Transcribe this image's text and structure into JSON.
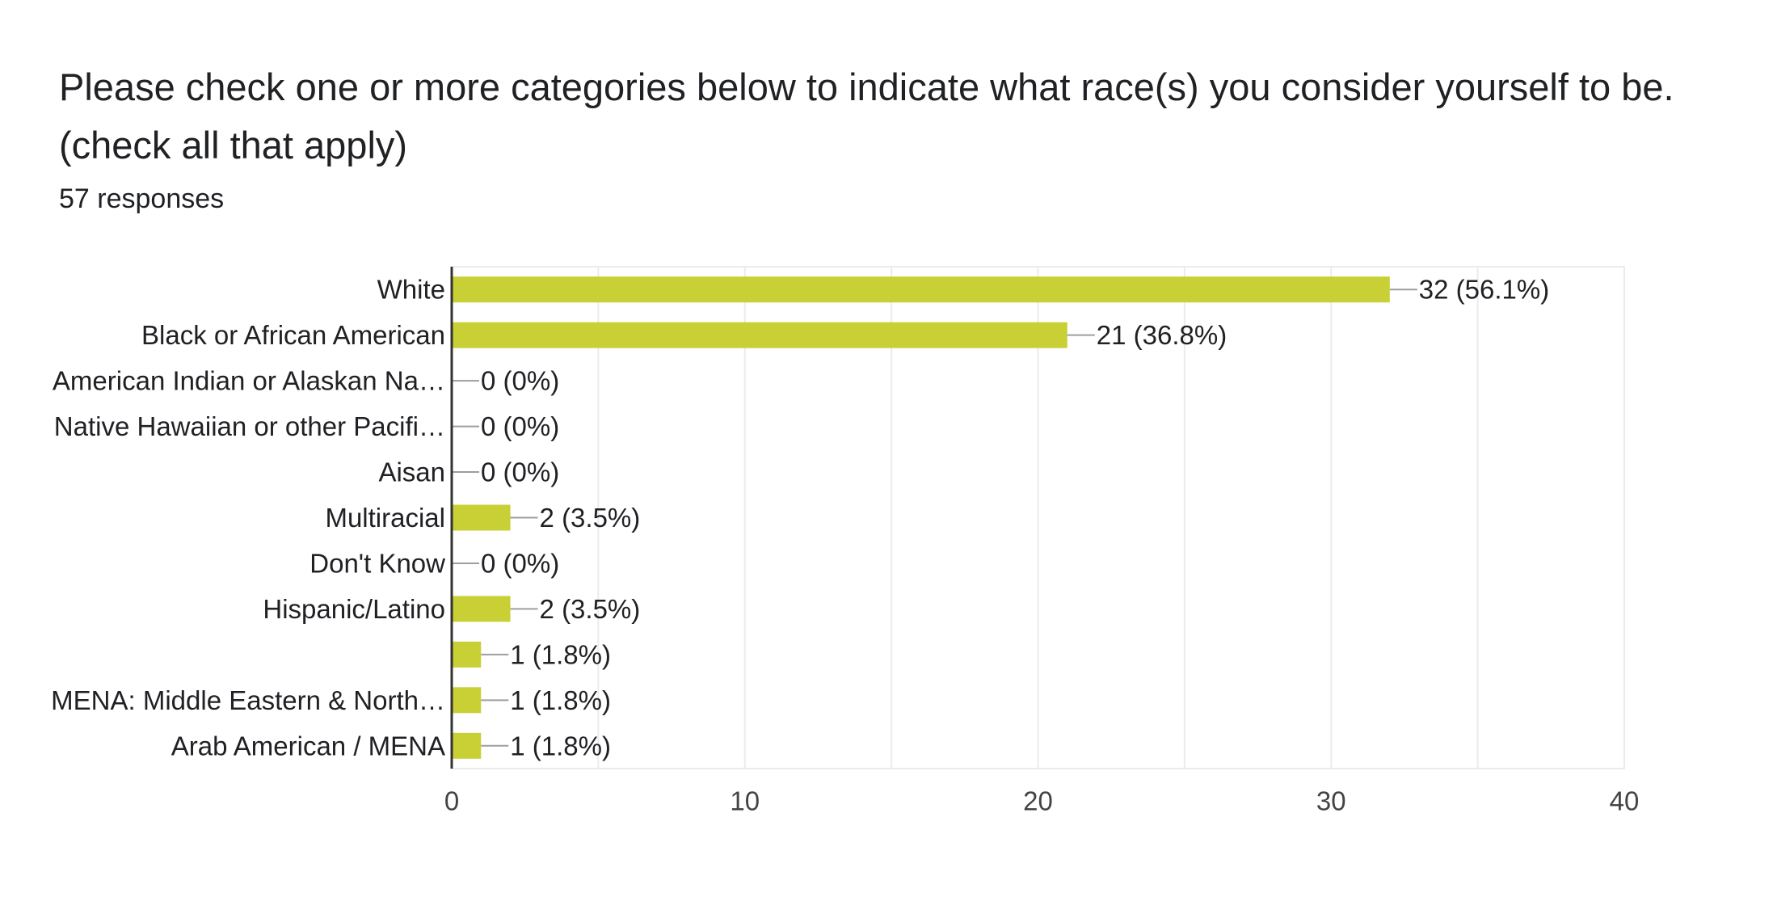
{
  "question": {
    "title": "Please check one or more categories below to indicate what race(s) you consider yourself to be. (check all that apply)",
    "responses_label": "57 responses"
  },
  "colors": {
    "bar": "#c9d036",
    "axis": "#333333",
    "grid": "#ebebeb",
    "leader": "#9e9e9e",
    "text": "#202124"
  },
  "chart_data": {
    "type": "bar",
    "orientation": "horizontal",
    "categories": [
      "White",
      "Black or African American",
      "American Indian or Alaskan Na…",
      "Native Hawaiian or other Pacifi…",
      "Aisan",
      "Multiracial",
      "Don't Know",
      "Hispanic/Latino",
      "",
      "MENA: Middle Eastern & North…",
      "Arab American / MENA"
    ],
    "values": [
      32,
      21,
      0,
      0,
      0,
      2,
      0,
      2,
      1,
      1,
      1
    ],
    "data_labels": [
      "32 (56.1%)",
      "21 (36.8%)",
      "0 (0%)",
      "0 (0%)",
      "0 (0%)",
      "2 (3.5%)",
      "0 (0%)",
      "2 (3.5%)",
      "1 (1.8%)",
      "1 (1.8%)",
      "1 (1.8%)"
    ],
    "xlim": [
      0,
      40
    ],
    "x_ticks": [
      0,
      10,
      20,
      30,
      40
    ],
    "grid_step": 5,
    "grid": true,
    "legend": "none"
  }
}
